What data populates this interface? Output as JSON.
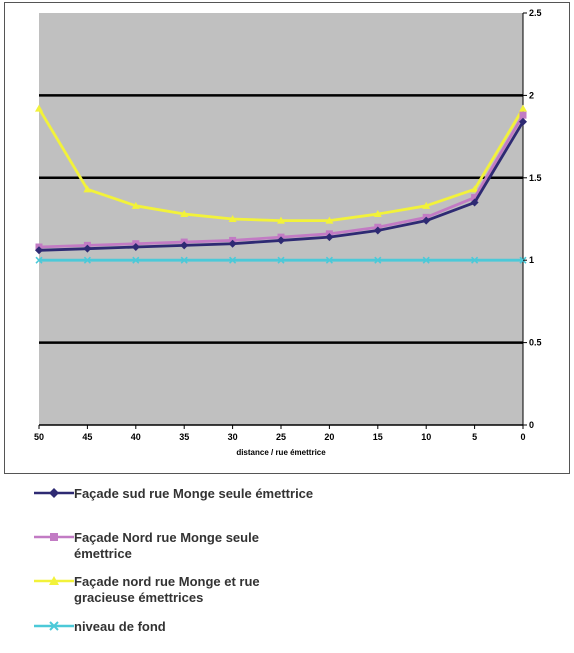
{
  "chart_data": {
    "type": "line",
    "xlabel": "distance / rue émettrice",
    "ylabel": "",
    "xlim": [
      50,
      0
    ],
    "ylim": [
      0,
      2.5
    ],
    "x_ticks": [
      "50",
      "45",
      "40",
      "35",
      "30",
      "25",
      "20",
      "15",
      "10",
      "5",
      "0"
    ],
    "y_ticks": [
      "0",
      "0.5",
      "1",
      "1.5",
      "2",
      "2.5"
    ],
    "major_gridlines": [
      0.5,
      1.5,
      2
    ],
    "plot_background": "#c0c0c0",
    "x": [
      50,
      45,
      40,
      35,
      30,
      25,
      20,
      15,
      10,
      5,
      0
    ],
    "series": [
      {
        "name": "Façade sud rue Monge seule émettrice",
        "color": "#2e2a73",
        "marker": "diamond",
        "values": [
          1.06,
          1.07,
          1.08,
          1.09,
          1.1,
          1.12,
          1.14,
          1.18,
          1.24,
          1.35,
          1.84
        ]
      },
      {
        "name": "Façade Nord rue Monge seule émettrice",
        "color": "#c27bc4",
        "marker": "square",
        "values": [
          1.08,
          1.09,
          1.1,
          1.11,
          1.12,
          1.14,
          1.16,
          1.2,
          1.26,
          1.38,
          1.88
        ]
      },
      {
        "name": "Façade nord rue Monge et rue gracieuse émettrices",
        "color": "#f2f23a",
        "marker": "triangle",
        "values": [
          1.92,
          1.43,
          1.33,
          1.28,
          1.25,
          1.24,
          1.24,
          1.28,
          1.33,
          1.43,
          1.92
        ]
      },
      {
        "name": "niveau de fond",
        "color": "#4cc9d8",
        "marker": "x",
        "values": [
          1.0,
          1.0,
          1.0,
          1.0,
          1.0,
          1.0,
          1.0,
          1.0,
          1.0,
          1.0,
          1.0
        ]
      }
    ]
  },
  "legend": {
    "items": [
      {
        "label": "Façade sud rue Monge seule émettrice"
      },
      {
        "label": "Façade Nord rue Monge seule émettrice"
      },
      {
        "label": "Façade nord rue Monge et rue gracieuse émettrices"
      },
      {
        "label": "niveau de fond"
      }
    ]
  }
}
